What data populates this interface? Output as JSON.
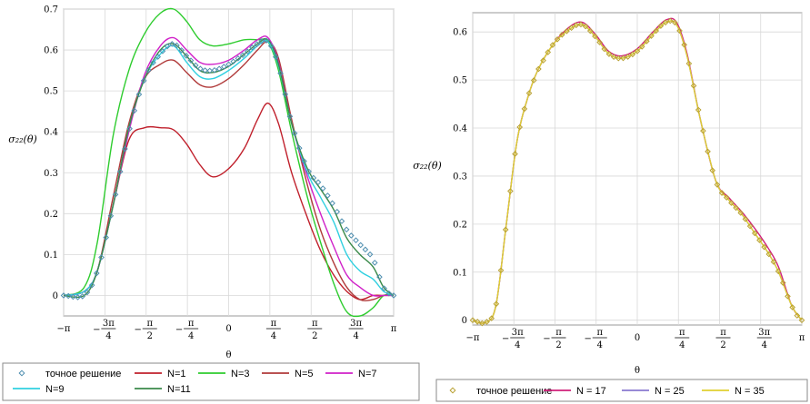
{
  "chart_data": [
    {
      "type": "line",
      "ylabel": "σ₂₂(θ)",
      "xlabel": "θ",
      "xlim": [
        -3.1416,
        3.1416
      ],
      "ylim": [
        -0.05,
        0.7
      ],
      "grid": true,
      "legend_position": "bottom",
      "x_ticks": [
        {
          "value": -3.1416,
          "text": "−π"
        },
        {
          "value": -2.3562,
          "text": "−3π/4"
        },
        {
          "value": -1.5708,
          "text": "−π/2"
        },
        {
          "value": -0.7854,
          "text": "−π/4"
        },
        {
          "value": 0,
          "text": "0"
        },
        {
          "value": 0.7854,
          "text": "π/4"
        },
        {
          "value": 1.5708,
          "text": "π/2"
        },
        {
          "value": 2.3562,
          "text": "3π/4"
        },
        {
          "value": 3.1416,
          "text": "π"
        }
      ],
      "y_ticks": [
        0,
        0.1,
        0.2,
        0.3,
        0.4,
        0.5,
        0.6,
        0.7
      ],
      "series": [
        {
          "name": "точное решение",
          "style": "markers",
          "color": "#4f8fb0",
          "x": [
            -3.14,
            -2.75,
            -2.5,
            -2.2,
            -1.9,
            -1.6,
            -1.3,
            -1.05,
            -0.8,
            -0.55,
            -0.3,
            0,
            0.3,
            0.55,
            0.75,
            0.95,
            1.2,
            1.5,
            1.75,
            2.0,
            2.25,
            2.5,
            2.75,
            2.95,
            3.14
          ],
          "y": [
            0,
            0,
            0.06,
            0.22,
            0.4,
            0.53,
            0.59,
            0.615,
            0.585,
            0.555,
            0.55,
            0.565,
            0.59,
            0.615,
            0.62,
            0.56,
            0.42,
            0.31,
            0.27,
            0.22,
            0.16,
            0.125,
            0.09,
            0.02,
            0
          ]
        },
        {
          "name": "N=1",
          "style": "line",
          "color": "#c0202c",
          "x": [
            -3.14,
            -2.75,
            -2.5,
            -2.2,
            -1.9,
            -1.6,
            -1.3,
            -1.05,
            -0.8,
            -0.55,
            -0.3,
            0,
            0.3,
            0.55,
            0.75,
            0.95,
            1.2,
            1.5,
            1.75,
            2.0,
            2.25,
            2.5,
            2.75,
            2.95,
            3.14
          ],
          "y": [
            0,
            0.01,
            0.06,
            0.22,
            0.38,
            0.41,
            0.41,
            0.405,
            0.37,
            0.32,
            0.29,
            0.31,
            0.36,
            0.43,
            0.47,
            0.42,
            0.3,
            0.19,
            0.11,
            0.05,
            0.01,
            -0.01,
            0,
            0,
            0
          ]
        },
        {
          "name": "N=3",
          "style": "line",
          "color": "#2ecc2e",
          "x": [
            -3.14,
            -2.75,
            -2.5,
            -2.2,
            -1.9,
            -1.6,
            -1.3,
            -1.05,
            -0.8,
            -0.55,
            -0.3,
            0,
            0.3,
            0.55,
            0.75,
            0.95,
            1.2,
            1.5,
            1.75,
            2.0,
            2.25,
            2.5,
            2.75,
            2.95,
            3.14
          ],
          "y": [
            0,
            0.02,
            0.13,
            0.39,
            0.55,
            0.64,
            0.69,
            0.7,
            0.67,
            0.625,
            0.61,
            0.615,
            0.625,
            0.625,
            0.62,
            0.55,
            0.4,
            0.24,
            0.13,
            0.03,
            -0.04,
            -0.05,
            -0.03,
            0,
            0
          ]
        },
        {
          "name": "N=5",
          "style": "line",
          "color": "#b03a3a",
          "x": [
            -3.14,
            -2.75,
            -2.5,
            -2.2,
            -1.9,
            -1.6,
            -1.3,
            -1.05,
            -0.8,
            -0.55,
            -0.3,
            0,
            0.3,
            0.55,
            0.75,
            0.95,
            1.2,
            1.5,
            1.75,
            2.0,
            2.25,
            2.5,
            2.75,
            2.95,
            3.14
          ],
          "y": [
            0,
            0.01,
            0.06,
            0.24,
            0.42,
            0.53,
            0.565,
            0.575,
            0.545,
            0.515,
            0.51,
            0.53,
            0.565,
            0.6,
            0.62,
            0.58,
            0.43,
            0.27,
            0.16,
            0.08,
            0.02,
            -0.01,
            -0.01,
            0,
            0
          ]
        },
        {
          "name": "N=7",
          "style": "line",
          "color": "#d020c8",
          "x": [
            -3.14,
            -2.75,
            -2.5,
            -2.2,
            -1.9,
            -1.6,
            -1.3,
            -1.05,
            -0.8,
            -0.55,
            -0.3,
            0,
            0.3,
            0.55,
            0.75,
            0.95,
            1.2,
            1.5,
            1.75,
            2.0,
            2.25,
            2.5,
            2.75,
            2.95,
            3.14
          ],
          "y": [
            0,
            0.01,
            0.06,
            0.22,
            0.4,
            0.54,
            0.61,
            0.63,
            0.6,
            0.57,
            0.565,
            0.575,
            0.6,
            0.625,
            0.63,
            0.57,
            0.42,
            0.29,
            0.2,
            0.12,
            0.05,
            0.02,
            0,
            0,
            0
          ]
        },
        {
          "name": "N=9",
          "style": "line",
          "color": "#30d0e0",
          "x": [
            -3.14,
            -2.75,
            -2.5,
            -2.2,
            -1.9,
            -1.6,
            -1.3,
            -1.05,
            -0.8,
            -0.55,
            -0.3,
            0,
            0.3,
            0.55,
            0.75,
            0.95,
            1.2,
            1.5,
            1.75,
            2.0,
            2.25,
            2.5,
            2.75,
            2.95,
            3.14
          ],
          "y": [
            0,
            0.01,
            0.06,
            0.22,
            0.41,
            0.53,
            0.59,
            0.61,
            0.57,
            0.535,
            0.53,
            0.55,
            0.58,
            0.61,
            0.62,
            0.56,
            0.42,
            0.3,
            0.24,
            0.18,
            0.1,
            0.06,
            0.04,
            0.01,
            0
          ]
        },
        {
          "name": "N=11",
          "style": "line",
          "color": "#3a8a4a",
          "x": [
            -3.14,
            -2.75,
            -2.5,
            -2.2,
            -1.9,
            -1.6,
            -1.3,
            -1.05,
            -0.8,
            -0.55,
            -0.3,
            0,
            0.3,
            0.55,
            0.75,
            0.95,
            1.2,
            1.5,
            1.75,
            2.0,
            2.25,
            2.5,
            2.75,
            2.95,
            3.14
          ],
          "y": [
            0,
            0.0,
            0.06,
            0.22,
            0.41,
            0.53,
            0.6,
            0.615,
            0.585,
            0.55,
            0.545,
            0.56,
            0.59,
            0.615,
            0.625,
            0.565,
            0.42,
            0.31,
            0.26,
            0.21,
            0.14,
            0.1,
            0.07,
            0.02,
            0
          ]
        }
      ]
    },
    {
      "type": "line",
      "ylabel": "σ₂₂(θ)",
      "xlabel": "θ",
      "xlim": [
        -3.1416,
        3.1416
      ],
      "ylim": [
        -0.01,
        0.64
      ],
      "grid": true,
      "legend_position": "bottom",
      "x_ticks": [
        {
          "value": -3.1416,
          "text": "−π"
        },
        {
          "value": -2.3562,
          "text": "−3π/4"
        },
        {
          "value": -1.5708,
          "text": "−π/2"
        },
        {
          "value": -0.7854,
          "text": "−π/4"
        },
        {
          "value": 0,
          "text": "0"
        },
        {
          "value": 0.7854,
          "text": "π/4"
        },
        {
          "value": 1.5708,
          "text": "π/2"
        },
        {
          "value": 2.3562,
          "text": "3π/4"
        },
        {
          "value": 3.1416,
          "text": "π"
        }
      ],
      "y_ticks": [
        0,
        0.1,
        0.2,
        0.3,
        0.4,
        0.5,
        0.6
      ],
      "series": [
        {
          "name": "точное решение",
          "style": "markers",
          "color": "#b8a030",
          "x": [
            -3.14,
            -2.9,
            -2.7,
            -2.5,
            -2.3,
            -2.1,
            -1.9,
            -1.6,
            -1.3,
            -1.05,
            -0.8,
            -0.55,
            -0.3,
            0,
            0.3,
            0.55,
            0.75,
            0.95,
            1.2,
            1.5,
            1.75,
            2.0,
            2.25,
            2.5,
            2.7,
            2.95,
            3.14
          ],
          "y": [
            0,
            -0.005,
            0.03,
            0.2,
            0.37,
            0.46,
            0.52,
            0.575,
            0.605,
            0.615,
            0.59,
            0.555,
            0.545,
            0.56,
            0.595,
            0.62,
            0.615,
            0.55,
            0.42,
            0.29,
            0.25,
            0.22,
            0.18,
            0.14,
            0.1,
            0.03,
            0
          ]
        },
        {
          "name": "N = 17",
          "style": "line",
          "color": "#d0207a",
          "x": [
            -3.14,
            -2.9,
            -2.7,
            -2.5,
            -2.3,
            -2.1,
            -1.9,
            -1.6,
            -1.3,
            -1.05,
            -0.8,
            -0.55,
            -0.3,
            0,
            0.3,
            0.55,
            0.75,
            0.95,
            1.2,
            1.5,
            1.75,
            2.0,
            2.25,
            2.5,
            2.7,
            2.95,
            3.14
          ],
          "y": [
            0,
            -0.005,
            0.03,
            0.2,
            0.37,
            0.46,
            0.52,
            0.575,
            0.61,
            0.62,
            0.595,
            0.56,
            0.55,
            0.565,
            0.6,
            0.625,
            0.62,
            0.555,
            0.42,
            0.29,
            0.255,
            0.225,
            0.19,
            0.15,
            0.11,
            0.03,
            0
          ]
        },
        {
          "name": "N = 25",
          "style": "line",
          "color": "#8a7ad0",
          "x": [
            -3.14,
            -2.9,
            -2.7,
            -2.5,
            -2.3,
            -2.1,
            -1.9,
            -1.6,
            -1.3,
            -1.05,
            -0.8,
            -0.55,
            -0.3,
            0,
            0.3,
            0.55,
            0.75,
            0.95,
            1.2,
            1.5,
            1.75,
            2.0,
            2.25,
            2.5,
            2.7,
            2.95,
            3.14
          ],
          "y": [
            0,
            -0.005,
            0.03,
            0.2,
            0.37,
            0.46,
            0.52,
            0.575,
            0.605,
            0.615,
            0.59,
            0.555,
            0.545,
            0.56,
            0.595,
            0.62,
            0.615,
            0.55,
            0.42,
            0.29,
            0.25,
            0.22,
            0.18,
            0.14,
            0.1,
            0.03,
            0
          ]
        },
        {
          "name": "N = 35",
          "style": "line",
          "color": "#e0d030",
          "x": [
            -3.14,
            -2.9,
            -2.7,
            -2.5,
            -2.3,
            -2.1,
            -1.9,
            -1.6,
            -1.3,
            -1.05,
            -0.8,
            -0.55,
            -0.3,
            0,
            0.3,
            0.55,
            0.75,
            0.95,
            1.2,
            1.5,
            1.75,
            2.0,
            2.25,
            2.5,
            2.7,
            2.95,
            3.14
          ],
          "y": [
            0,
            -0.005,
            0.03,
            0.2,
            0.37,
            0.46,
            0.52,
            0.575,
            0.605,
            0.615,
            0.59,
            0.555,
            0.545,
            0.56,
            0.595,
            0.62,
            0.615,
            0.55,
            0.42,
            0.29,
            0.25,
            0.22,
            0.18,
            0.14,
            0.1,
            0.03,
            0
          ]
        }
      ]
    }
  ]
}
